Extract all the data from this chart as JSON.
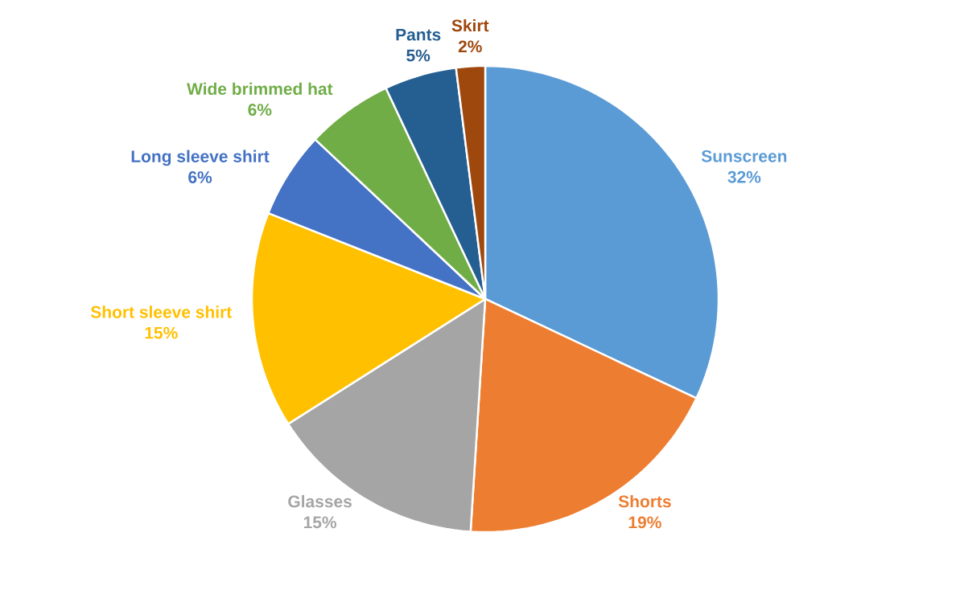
{
  "chart_data": {
    "type": "pie",
    "categories": [
      "Sunscreen",
      "Shorts",
      "Glasses",
      "Short sleeve shirt",
      "Long sleeve shirt",
      "Wide brimmed hat",
      "Pants",
      "Skirt"
    ],
    "values": [
      32,
      19,
      15,
      15,
      6,
      6,
      5,
      2
    ],
    "value_labels": [
      "32%",
      "19%",
      "15%",
      "15%",
      "6%",
      "6%",
      "5%",
      "2%"
    ],
    "colors": [
      "#5b9bd5",
      "#ed7d31",
      "#a5a5a5",
      "#ffc000",
      "#4472c4",
      "#70ad47",
      "#255e91",
      "#9e480e"
    ]
  }
}
